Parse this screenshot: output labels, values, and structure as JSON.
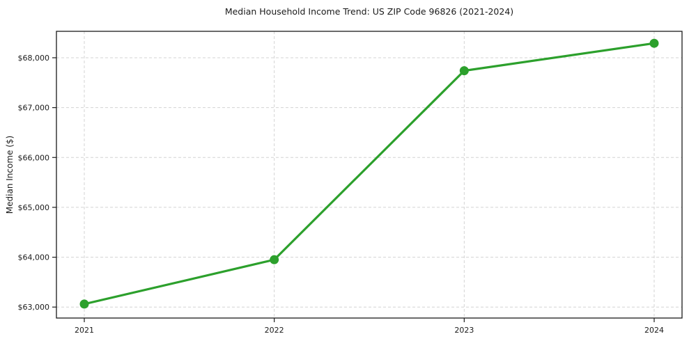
{
  "chart_data": {
    "type": "line",
    "title": "Median Household Income Trend: US ZIP Code 96826 (2021-2024)",
    "xlabel": "",
    "ylabel": "Median Income ($)",
    "x": [
      "2021",
      "2022",
      "2023",
      "2024"
    ],
    "series": [
      {
        "name": "Median Household Income",
        "values": [
          63060,
          63950,
          67740,
          68290
        ],
        "color": "#2ca02c",
        "marker": "circle"
      }
    ],
    "ylim": [
      62780,
      68530
    ],
    "yticks": {
      "values": [
        63000,
        64000,
        65000,
        66000,
        67000,
        68000
      ],
      "labels": [
        "$63,000",
        "$64,000",
        "$65,000",
        "$66,000",
        "$67,000",
        "$68,000"
      ]
    },
    "grid": "dashed, both axes",
    "legend": "none",
    "colors": {
      "line": "#2ca02c",
      "grid": "#d3d3d3",
      "spine": "#1a1a1a",
      "text": "#1a1a1a",
      "background": "#ffffff"
    }
  }
}
